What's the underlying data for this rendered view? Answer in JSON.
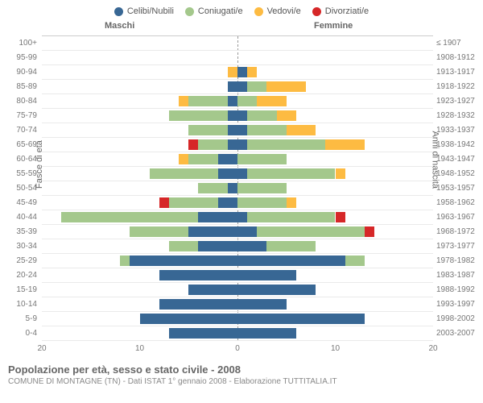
{
  "chart": {
    "type": "population-pyramid",
    "title": "Popolazione per età, sesso e stato civile - 2008",
    "subtitle": "COMUNE DI MONTAGNE (TN) - Dati ISTAT 1° gennaio 2008 - Elaborazione TUTTITALIA.IT",
    "legend": [
      {
        "key": "celibi",
        "label": "Celibi/Nubili",
        "color": "#386794"
      },
      {
        "key": "coniugati",
        "label": "Coniugati/e",
        "color": "#a4c88c"
      },
      {
        "key": "vedovi",
        "label": "Vedovi/e",
        "color": "#fdbb42"
      },
      {
        "key": "divorziati",
        "label": "Divorziati/e",
        "color": "#d62728"
      }
    ],
    "headers": {
      "male": "Maschi",
      "female": "Femmine"
    },
    "axis_left_label": "Fasce di età",
    "axis_right_label": "Anni di nascita",
    "xmax": 20,
    "xticks": [
      20,
      10,
      0,
      10,
      20
    ],
    "background_color": "#ffffff",
    "grid_color": "#eaeaea",
    "rows": [
      {
        "age": "100+",
        "birth": "≤ 1907",
        "m": {
          "celibi": 0,
          "coniugati": 0,
          "vedovi": 0,
          "divorziati": 0
        },
        "f": {
          "celibi": 0,
          "coniugati": 0,
          "vedovi": 0,
          "divorziati": 0
        }
      },
      {
        "age": "95-99",
        "birth": "1908-1912",
        "m": {
          "celibi": 0,
          "coniugati": 0,
          "vedovi": 0,
          "divorziati": 0
        },
        "f": {
          "celibi": 0,
          "coniugati": 0,
          "vedovi": 0,
          "divorziati": 0
        }
      },
      {
        "age": "90-94",
        "birth": "1913-1917",
        "m": {
          "celibi": 0,
          "coniugati": 0,
          "vedovi": 1,
          "divorziati": 0
        },
        "f": {
          "celibi": 1,
          "coniugati": 0,
          "vedovi": 1,
          "divorziati": 0
        }
      },
      {
        "age": "85-89",
        "birth": "1918-1922",
        "m": {
          "celibi": 1,
          "coniugati": 0,
          "vedovi": 0,
          "divorziati": 0
        },
        "f": {
          "celibi": 1,
          "coniugati": 2,
          "vedovi": 4,
          "divorziati": 0
        }
      },
      {
        "age": "80-84",
        "birth": "1923-1927",
        "m": {
          "celibi": 1,
          "coniugati": 4,
          "vedovi": 1,
          "divorziati": 0
        },
        "f": {
          "celibi": 0,
          "coniugati": 2,
          "vedovi": 3,
          "divorziati": 0
        }
      },
      {
        "age": "75-79",
        "birth": "1928-1932",
        "m": {
          "celibi": 1,
          "coniugati": 6,
          "vedovi": 0,
          "divorziati": 0
        },
        "f": {
          "celibi": 1,
          "coniugati": 3,
          "vedovi": 2,
          "divorziati": 0
        }
      },
      {
        "age": "70-74",
        "birth": "1933-1937",
        "m": {
          "celibi": 1,
          "coniugati": 4,
          "vedovi": 0,
          "divorziati": 0
        },
        "f": {
          "celibi": 1,
          "coniugati": 4,
          "vedovi": 3,
          "divorziati": 0
        }
      },
      {
        "age": "65-69",
        "birth": "1938-1942",
        "m": {
          "celibi": 1,
          "coniugati": 3,
          "vedovi": 0,
          "divorziati": 1
        },
        "f": {
          "celibi": 1,
          "coniugati": 8,
          "vedovi": 4,
          "divorziati": 0
        }
      },
      {
        "age": "60-64",
        "birth": "1943-1947",
        "m": {
          "celibi": 2,
          "coniugati": 3,
          "vedovi": 1,
          "divorziati": 0
        },
        "f": {
          "celibi": 0,
          "coniugati": 5,
          "vedovi": 0,
          "divorziati": 0
        }
      },
      {
        "age": "55-59",
        "birth": "1948-1952",
        "m": {
          "celibi": 2,
          "coniugati": 7,
          "vedovi": 0,
          "divorziati": 0
        },
        "f": {
          "celibi": 1,
          "coniugati": 9,
          "vedovi": 1,
          "divorziati": 0
        }
      },
      {
        "age": "50-54",
        "birth": "1953-1957",
        "m": {
          "celibi": 1,
          "coniugati": 3,
          "vedovi": 0,
          "divorziati": 0
        },
        "f": {
          "celibi": 0,
          "coniugati": 5,
          "vedovi": 0,
          "divorziati": 0
        }
      },
      {
        "age": "45-49",
        "birth": "1958-1962",
        "m": {
          "celibi": 2,
          "coniugati": 5,
          "vedovi": 0,
          "divorziati": 1
        },
        "f": {
          "celibi": 0,
          "coniugati": 5,
          "vedovi": 1,
          "divorziati": 0
        }
      },
      {
        "age": "40-44",
        "birth": "1963-1967",
        "m": {
          "celibi": 4,
          "coniugati": 14,
          "vedovi": 0,
          "divorziati": 0
        },
        "f": {
          "celibi": 1,
          "coniugati": 9,
          "vedovi": 0,
          "divorziati": 1
        }
      },
      {
        "age": "35-39",
        "birth": "1968-1972",
        "m": {
          "celibi": 5,
          "coniugati": 6,
          "vedovi": 0,
          "divorziati": 0
        },
        "f": {
          "celibi": 2,
          "coniugati": 11,
          "vedovi": 0,
          "divorziati": 1
        }
      },
      {
        "age": "30-34",
        "birth": "1973-1977",
        "m": {
          "celibi": 4,
          "coniugati": 3,
          "vedovi": 0,
          "divorziati": 0
        },
        "f": {
          "celibi": 3,
          "coniugati": 5,
          "vedovi": 0,
          "divorziati": 0
        }
      },
      {
        "age": "25-29",
        "birth": "1978-1982",
        "m": {
          "celibi": 11,
          "coniugati": 1,
          "vedovi": 0,
          "divorziati": 0
        },
        "f": {
          "celibi": 11,
          "coniugati": 2,
          "vedovi": 0,
          "divorziati": 0
        }
      },
      {
        "age": "20-24",
        "birth": "1983-1987",
        "m": {
          "celibi": 8,
          "coniugati": 0,
          "vedovi": 0,
          "divorziati": 0
        },
        "f": {
          "celibi": 6,
          "coniugati": 0,
          "vedovi": 0,
          "divorziati": 0
        }
      },
      {
        "age": "15-19",
        "birth": "1988-1992",
        "m": {
          "celibi": 5,
          "coniugati": 0,
          "vedovi": 0,
          "divorziati": 0
        },
        "f": {
          "celibi": 8,
          "coniugati": 0,
          "vedovi": 0,
          "divorziati": 0
        }
      },
      {
        "age": "10-14",
        "birth": "1993-1997",
        "m": {
          "celibi": 8,
          "coniugati": 0,
          "vedovi": 0,
          "divorziati": 0
        },
        "f": {
          "celibi": 5,
          "coniugati": 0,
          "vedovi": 0,
          "divorziati": 0
        }
      },
      {
        "age": "5-9",
        "birth": "1998-2002",
        "m": {
          "celibi": 10,
          "coniugati": 0,
          "vedovi": 0,
          "divorziati": 0
        },
        "f": {
          "celibi": 13,
          "coniugati": 0,
          "vedovi": 0,
          "divorziati": 0
        }
      },
      {
        "age": "0-4",
        "birth": "2003-2007",
        "m": {
          "celibi": 7,
          "coniugati": 0,
          "vedovi": 0,
          "divorziati": 0
        },
        "f": {
          "celibi": 6,
          "coniugati": 0,
          "vedovi": 0,
          "divorziati": 0
        }
      }
    ]
  }
}
